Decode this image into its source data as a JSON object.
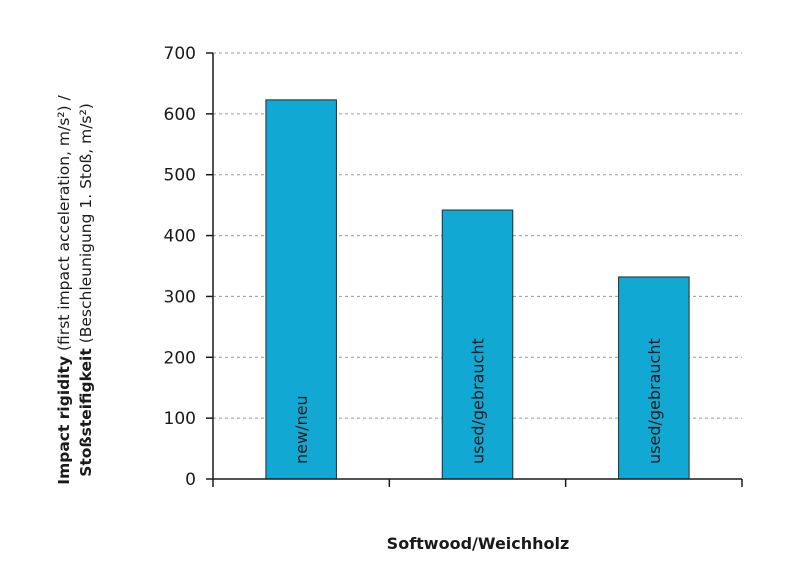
{
  "chart_data": {
    "type": "bar",
    "categories": [
      "new/neu",
      "used/gebraucht",
      "used/gebraucht"
    ],
    "values": [
      623,
      442,
      332
    ],
    "xlabel": "Softwood/Weichholz",
    "ylabel": {
      "line1_bold": "Impact rigidity",
      "line1_rest": " (first impact acceleration, m/s²) /",
      "line2_bold": "Stoßsteifigkeit",
      "line2_rest": " (Beschleunigung 1. Stoß, m/s²)"
    },
    "ylim": [
      0,
      700
    ],
    "yticks": [
      0,
      100,
      200,
      300,
      400,
      500,
      600,
      700
    ],
    "grid": true,
    "colors": {
      "bar": "#12a8d4",
      "bar_edge": "#2a2a2a",
      "grid": "#9a9a9a",
      "axis": "#1a1a1a"
    }
  }
}
